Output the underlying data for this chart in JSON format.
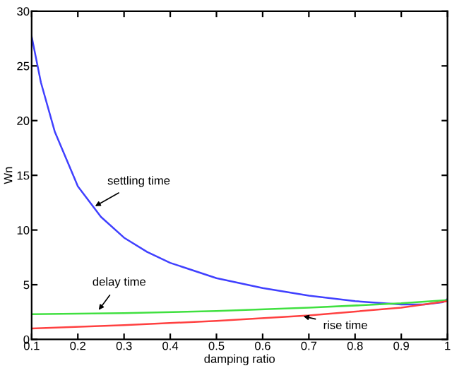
{
  "chart_data": {
    "type": "line",
    "xlabel": "damping ratio",
    "ylabel": "Wn",
    "xlim": [
      0.1,
      1
    ],
    "ylim": [
      0,
      30
    ],
    "xticks": [
      0.1,
      0.2,
      0.3,
      0.4,
      0.5,
      0.6,
      0.7,
      0.8,
      0.9,
      {
        "value": 1,
        "label": "1"
      }
    ],
    "yticks": [
      0,
      5,
      10,
      15,
      20,
      25,
      30
    ],
    "grid": false,
    "legend": false,
    "series": [
      {
        "color": "#4040ff",
        "x": [
          0.1,
          0.12,
          0.15,
          0.2,
          0.25,
          0.3,
          0.35,
          0.4,
          0.5,
          0.6,
          0.7,
          0.8,
          0.9,
          0.95,
          0.99,
          1.0
        ],
        "values": [
          27.7,
          23.5,
          19,
          14,
          11.2,
          9.3,
          8,
          7,
          5.6,
          4.7,
          4,
          3.5,
          3.2,
          3.2,
          3.4,
          3.7
        ]
      },
      {
        "color": "#40e040",
        "x": [
          0.1,
          0.3,
          0.5,
          0.7,
          0.9,
          1.0
        ],
        "values": [
          2.3,
          2.4,
          2.6,
          2.9,
          3.3,
          3.6
        ]
      },
      {
        "color": "#ff4040",
        "x": [
          0.1,
          0.3,
          0.5,
          0.7,
          0.9,
          1.0
        ],
        "values": [
          1.0,
          1.3,
          1.7,
          2.2,
          2.9,
          3.5
        ]
      }
    ],
    "annotations": [
      {
        "text": "settling time",
        "x": 0.23,
        "y": 12
      },
      {
        "text": "delay time",
        "x": 0.24,
        "y": 2.4
      },
      {
        "text": "rise time",
        "x": 0.68,
        "y": 2.2
      }
    ]
  }
}
